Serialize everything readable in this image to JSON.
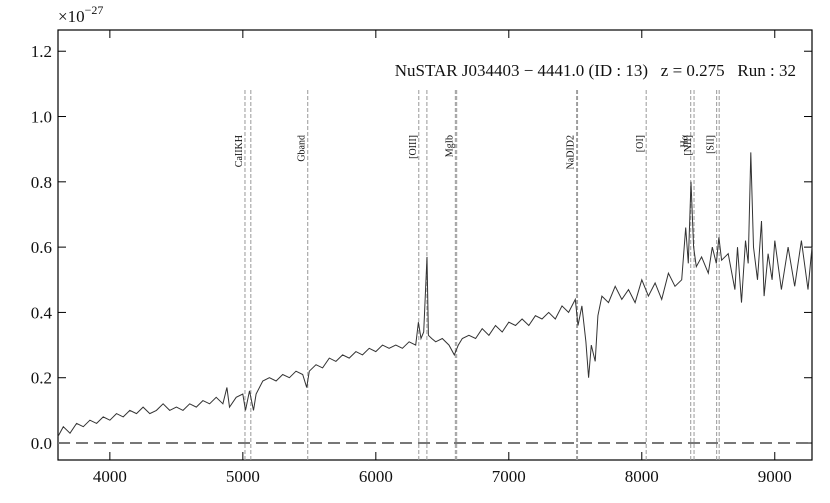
{
  "chart_data": {
    "type": "line",
    "annotation": "NuSTAR J034403 − 4441.0 (ID : 13)   z = 0.275   Run : 32",
    "y_multiplier": {
      "base": "×10",
      "exponent": "−27"
    },
    "xlim": [
      3610,
      9280
    ],
    "ylim": [
      -0.052,
      1.265
    ],
    "xticks": [
      4000,
      5000,
      6000,
      7000,
      8000,
      9000
    ],
    "yticks": [
      {
        "value": 0,
        "label": "0.0"
      },
      0.2,
      0.4,
      0.6,
      0.8,
      {
        "value": 1,
        "label": "1.0"
      },
      1.2
    ],
    "zero_line": 0,
    "series": [
      {
        "color": "#333333",
        "x": [
          3610,
          3650,
          3700,
          3750,
          3800,
          3850,
          3900,
          3950,
          4000,
          4050,
          4100,
          4150,
          4200,
          4250,
          4300,
          4350,
          4400,
          4450,
          4500,
          4550,
          4600,
          4650,
          4700,
          4750,
          4800,
          4850,
          4880,
          4900,
          4950,
          5000,
          5020,
          5050,
          5080,
          5100,
          5150,
          5200,
          5250,
          5300,
          5350,
          5400,
          5450,
          5480,
          5500,
          5550,
          5600,
          5650,
          5700,
          5750,
          5800,
          5850,
          5900,
          5950,
          6000,
          6050,
          6100,
          6150,
          6200,
          6250,
          6300,
          6320,
          6340,
          6360,
          6385,
          6395,
          6420,
          6450,
          6500,
          6550,
          6590,
          6620,
          6650,
          6700,
          6750,
          6800,
          6850,
          6900,
          6950,
          7000,
          7050,
          7100,
          7150,
          7200,
          7250,
          7300,
          7350,
          7400,
          7450,
          7500,
          7520,
          7550,
          7580,
          7600,
          7620,
          7650,
          7670,
          7700,
          7750,
          7800,
          7850,
          7900,
          7950,
          8000,
          8050,
          8100,
          8150,
          8200,
          8250,
          8300,
          8330,
          8350,
          8370,
          8390,
          8410,
          8450,
          8500,
          8530,
          8560,
          8580,
          8600,
          8650,
          8700,
          8720,
          8750,
          8780,
          8800,
          8820,
          8840,
          8870,
          8900,
          8920,
          8950,
          8980,
          9000,
          9050,
          9100,
          9150,
          9200,
          9250,
          9280
        ],
        "values": [
          0.02,
          0.05,
          0.03,
          0.06,
          0.05,
          0.07,
          0.06,
          0.08,
          0.07,
          0.09,
          0.08,
          0.1,
          0.09,
          0.11,
          0.09,
          0.1,
          0.12,
          0.1,
          0.11,
          0.1,
          0.12,
          0.11,
          0.13,
          0.12,
          0.14,
          0.12,
          0.17,
          0.11,
          0.14,
          0.15,
          0.1,
          0.16,
          0.1,
          0.15,
          0.19,
          0.2,
          0.19,
          0.21,
          0.2,
          0.22,
          0.21,
          0.17,
          0.22,
          0.24,
          0.23,
          0.26,
          0.25,
          0.27,
          0.26,
          0.28,
          0.27,
          0.29,
          0.28,
          0.3,
          0.29,
          0.3,
          0.29,
          0.31,
          0.3,
          0.37,
          0.32,
          0.34,
          0.57,
          0.33,
          0.32,
          0.31,
          0.32,
          0.3,
          0.27,
          0.3,
          0.32,
          0.33,
          0.32,
          0.35,
          0.33,
          0.36,
          0.34,
          0.37,
          0.36,
          0.38,
          0.36,
          0.39,
          0.38,
          0.4,
          0.38,
          0.42,
          0.4,
          0.44,
          0.36,
          0.42,
          0.31,
          0.2,
          0.3,
          0.25,
          0.39,
          0.45,
          0.43,
          0.48,
          0.44,
          0.47,
          0.43,
          0.5,
          0.45,
          0.49,
          0.44,
          0.52,
          0.48,
          0.5,
          0.66,
          0.55,
          0.8,
          0.6,
          0.54,
          0.57,
          0.52,
          0.6,
          0.55,
          0.63,
          0.56,
          0.58,
          0.47,
          0.6,
          0.43,
          0.62,
          0.55,
          0.89,
          0.6,
          0.5,
          0.68,
          0.45,
          0.58,
          0.5,
          0.62,
          0.47,
          0.6,
          0.48,
          0.62,
          0.47,
          0.6
        ]
      }
    ],
    "spectral_lines": [
      {
        "label": "CaIIKH",
        "x": [
          5016,
          5060
        ]
      },
      {
        "label": "Gband",
        "x": [
          5488
        ]
      },
      {
        "label": "[OIII]",
        "x": [
          6323,
          6384
        ]
      },
      {
        "label": "MgIb",
        "x": [
          6598,
          6608
        ]
      },
      {
        "label": "NaDID2",
        "x": [
          7510,
          7517
        ]
      },
      {
        "label": "[OI]",
        "x": [
          8033
        ]
      },
      {
        "label": "Hα",
        "x": [
          8368
        ]
      },
      {
        "label": "[NII]",
        "x": [
          8393
        ]
      },
      {
        "label": "[SII]",
        "x": [
          8563,
          8582
        ]
      }
    ]
  }
}
